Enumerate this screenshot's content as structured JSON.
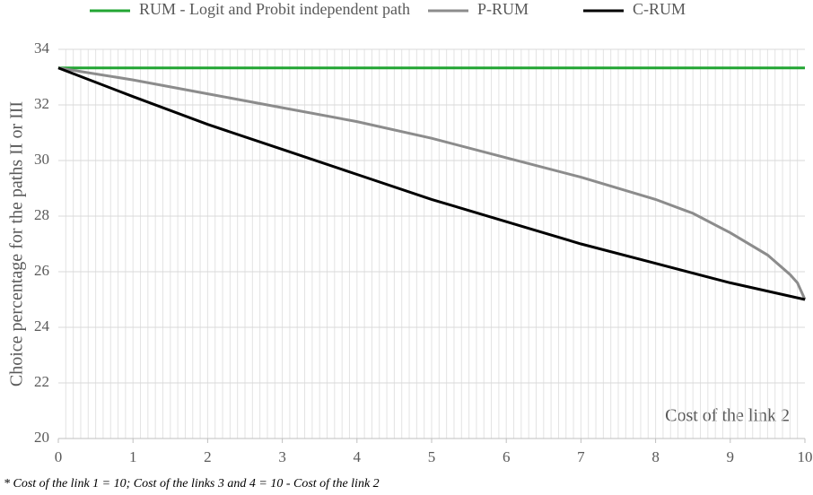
{
  "chart_data": {
    "type": "line",
    "y_label": "Choice percentage for the paths II or III",
    "annotation": "Cost of the link 2",
    "footnote": "* Cost of the link 1 = 10;   Cost of the links 3 and 4 = 10 - Cost of the link 2",
    "xlim": [
      0,
      10
    ],
    "xticks": [
      0,
      1,
      2,
      3,
      4,
      5,
      6,
      7,
      8,
      9,
      10
    ],
    "ylim": [
      20,
      34
    ],
    "yticks": [
      20,
      22,
      24,
      26,
      28,
      30,
      32,
      34
    ],
    "grid": true,
    "x_minor_grid_step": 0.1,
    "legend": "top",
    "series": [
      {
        "name": "RUM - Logit and Probit independent path",
        "color": "#22a533",
        "x": [
          0,
          10
        ],
        "values": [
          33.33,
          33.33
        ]
      },
      {
        "name": "P-RUM",
        "color": "#8c8c8c",
        "x": [
          0,
          1,
          2,
          3,
          4,
          5,
          6,
          7,
          8,
          8.5,
          9,
          9.5,
          9.8,
          9.9,
          10
        ],
        "values": [
          33.33,
          32.9,
          32.4,
          31.9,
          31.4,
          30.8,
          30.1,
          29.4,
          28.6,
          28.1,
          27.4,
          26.6,
          25.9,
          25.6,
          25.0
        ]
      },
      {
        "name": "C-RUM",
        "color": "#000000",
        "x": [
          0,
          1,
          2,
          3,
          4,
          5,
          6,
          7,
          8,
          9,
          10
        ],
        "values": [
          33.33,
          32.3,
          31.3,
          30.4,
          29.5,
          28.6,
          27.8,
          27.0,
          26.3,
          25.6,
          25.0
        ]
      }
    ]
  }
}
